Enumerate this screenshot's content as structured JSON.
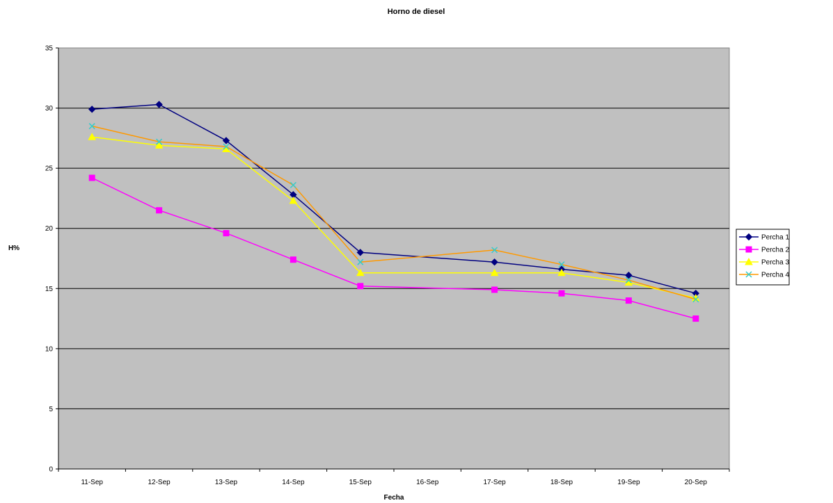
{
  "chart_data": {
    "type": "line",
    "title": "Horno de diesel",
    "xlabel": "Fecha",
    "ylabel": "H%",
    "ylim": [
      0,
      35
    ],
    "ytick_step": 5,
    "y_ticks": [
      "0",
      "5",
      "10",
      "15",
      "20",
      "25",
      "30",
      "35"
    ],
    "grid": true,
    "plot_background": "#c0c0c0",
    "legend_position": "right",
    "categories": [
      "11-Sep",
      "12-Sep",
      "13-Sep",
      "14-Sep",
      "15-Sep",
      "16-Sep",
      "17-Sep",
      "18-Sep",
      "19-Sep",
      "20-Sep"
    ],
    "series": [
      {
        "name": "Percha 1",
        "color": "#000080",
        "marker": "diamond",
        "values": [
          29.9,
          30.3,
          27.3,
          22.8,
          18.0,
          null,
          17.2,
          16.6,
          16.1,
          14.6
        ]
      },
      {
        "name": "Percha 2",
        "color": "#ff00ff",
        "marker": "square",
        "values": [
          24.2,
          21.5,
          19.6,
          17.4,
          15.2,
          null,
          14.9,
          14.6,
          14.0,
          12.5
        ]
      },
      {
        "name": "Percha 3",
        "color": "#ffff00",
        "marker": "triangle",
        "values": [
          27.6,
          26.9,
          26.6,
          22.3,
          16.3,
          null,
          16.3,
          16.3,
          15.5,
          14.2
        ]
      },
      {
        "name": "Percha 4",
        "color": "#ff9900",
        "marker_color": "#33cccc",
        "marker": "x",
        "values": [
          28.5,
          27.2,
          26.8,
          23.6,
          17.2,
          null,
          18.2,
          17.0,
          15.7,
          14.1
        ]
      }
    ]
  }
}
